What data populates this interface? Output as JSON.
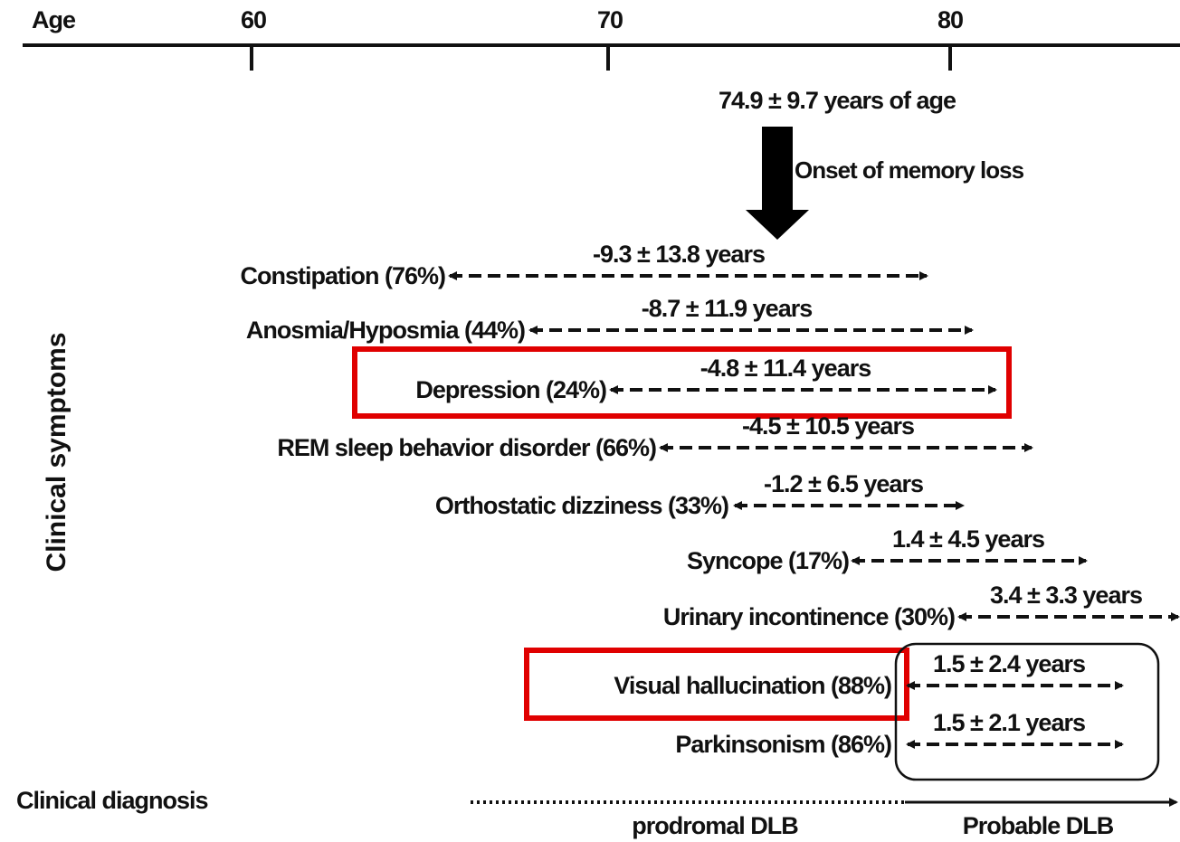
{
  "axis": {
    "label": "Age",
    "ticks": [
      "60",
      "70",
      "80"
    ]
  },
  "onset": {
    "age": "74.9 ± 9.7 years of age",
    "label": "Onset of memory loss"
  },
  "y_label": "Clinical symptoms",
  "symptoms": [
    {
      "label": "Constipation (76%)",
      "interval": "-9.3 ± 13.8 years"
    },
    {
      "label": "Anosmia/Hyposmia (44%)",
      "interval": "-8.7 ± 11.9 years"
    },
    {
      "label": "Depression (24%)",
      "interval": "-4.8 ± 11.4 years"
    },
    {
      "label": "REM sleep behavior disorder (66%)",
      "interval": "-4.5 ± 10.5 years"
    },
    {
      "label": "Orthostatic dizziness (33%)",
      "interval": "-1.2 ± 6.5 years"
    },
    {
      "label": "Syncope (17%)",
      "interval": "1.4 ± 4.5 years"
    },
    {
      "label": "Urinary incontinence (30%)",
      "interval": "3.4 ± 3.3 years"
    },
    {
      "label": "Visual hallucination (88%)",
      "interval": "1.5 ± 2.4 years"
    },
    {
      "label": "Parkinsonism (86%)",
      "interval": "1.5 ± 2.1 years"
    }
  ],
  "diagnosis": {
    "label": "Clinical diagnosis",
    "prodromal": "prodromal DLB",
    "probable": "Probable DLB"
  }
}
